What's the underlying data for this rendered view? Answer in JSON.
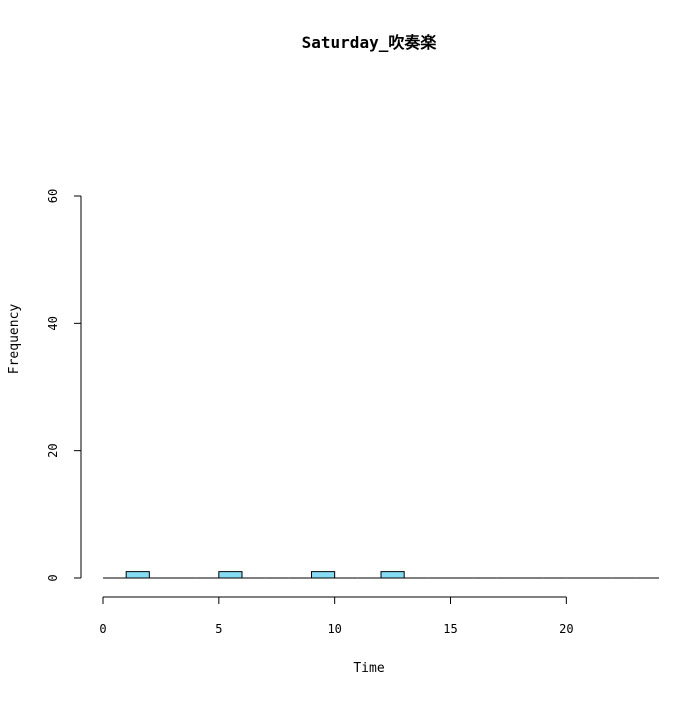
{
  "chart_data": {
    "type": "bar",
    "title": "Saturday_吹奏楽",
    "xlabel": "Time",
    "ylabel": "Frequency",
    "xlim": [
      0,
      24
    ],
    "ylim": [
      0,
      60
    ],
    "x_ticks": [
      0,
      5,
      10,
      15,
      20
    ],
    "y_ticks": [
      0,
      20,
      40,
      60
    ],
    "bin_width": 1,
    "bin_starts": [
      0,
      1,
      2,
      3,
      4,
      5,
      6,
      7,
      8,
      9,
      10,
      11,
      12,
      13,
      14,
      15,
      16,
      17,
      18,
      19,
      20,
      21,
      22,
      23
    ],
    "values": [
      0,
      1,
      0,
      0,
      0,
      1,
      0,
      0,
      0,
      1,
      0,
      0,
      1,
      0,
      0,
      0,
      0,
      0,
      0,
      0,
      0,
      0,
      0,
      0
    ],
    "grid": false,
    "legend": "none",
    "colors": {
      "bar_fill": "#87dcf5",
      "bar_stroke": "#000000",
      "axis": "#000000"
    }
  }
}
